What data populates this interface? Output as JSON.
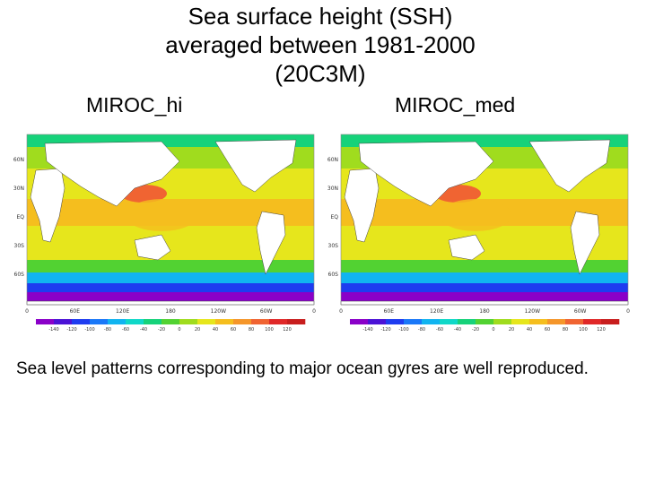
{
  "title": {
    "line1": "Sea surface height (SSH)",
    "line2": "averaged between 1981-2000",
    "line3": "(20C3M)"
  },
  "panels": [
    {
      "label": "MIROC_hi",
      "lat_labels": [
        "60N",
        "30N",
        "EQ",
        "30S",
        "60S"
      ],
      "lon_labels": [
        "0",
        "60E",
        "120E",
        "180",
        "120W",
        "60W",
        "0"
      ],
      "colorbar_labels": [
        "-140",
        "-120",
        "-100",
        "-80",
        "-60",
        "-40",
        "-20",
        "0",
        "20",
        "40",
        "60",
        "80",
        "100",
        "120"
      ]
    },
    {
      "label": "MIROC_med",
      "lat_labels": [
        "60N",
        "30N",
        "EQ",
        "30S",
        "60S"
      ],
      "lon_labels": [
        "0",
        "60E",
        "120E",
        "180",
        "120W",
        "60W",
        "0"
      ],
      "colorbar_labels": [
        "-140",
        "-120",
        "-100",
        "-80",
        "-60",
        "-40",
        "-20",
        "0",
        "20",
        "40",
        "60",
        "80",
        "100",
        "120"
      ]
    }
  ],
  "colors": {
    "land": "#ffffff",
    "scale": [
      "#8a00c8",
      "#4b12d6",
      "#1e3cf0",
      "#1a78f8",
      "#11b4f0",
      "#10d8c8",
      "#16d27a",
      "#52d232",
      "#a0dc1e",
      "#e6e61c",
      "#f5be1e",
      "#f5962a",
      "#f06432",
      "#e02828",
      "#c81e1e"
    ]
  },
  "caption": "Sea level patterns corresponding to major ocean gyres are well reproduced."
}
